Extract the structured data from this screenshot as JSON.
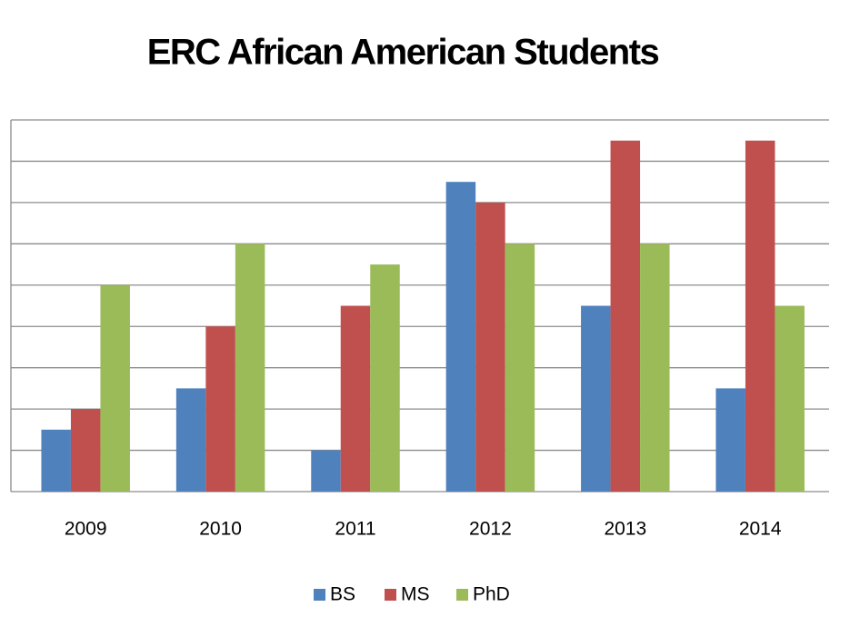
{
  "chart_data": {
    "type": "bar",
    "title": "ERC African American Students",
    "categories": [
      "2009",
      "2010",
      "2011",
      "2012",
      "2013",
      "2014"
    ],
    "series": [
      {
        "name": "BS",
        "color": "#4f81bd",
        "values": [
          1.5,
          2.5,
          1,
          7.5,
          4.5,
          2.5
        ]
      },
      {
        "name": "MS",
        "color": "#c0504d",
        "values": [
          2,
          4,
          4.5,
          7,
          8.5,
          8.5
        ]
      },
      {
        "name": "PhD",
        "color": "#9bbb59",
        "values": [
          5,
          6,
          5.5,
          6,
          6,
          4.5
        ]
      }
    ],
    "ylim": [
      0,
      9
    ],
    "yticks": [
      0,
      1,
      2,
      3,
      4,
      5,
      6,
      7,
      8,
      9
    ],
    "grid": true,
    "legend": "bottom"
  }
}
